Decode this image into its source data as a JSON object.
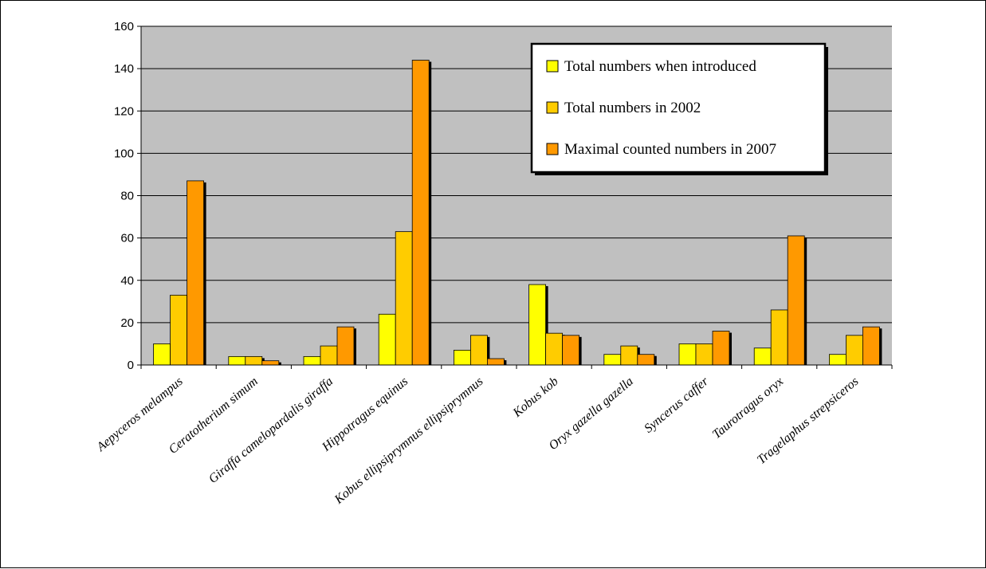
{
  "chart_data": {
    "type": "bar",
    "categories": [
      "Aepyceros melampus",
      "Ceratotherium simum",
      "Giraffa camelopardalis giraffa",
      "Hippotragus equinus",
      "Kobus ellipsiprymnus ellipsiprymnus",
      "Kobus kob",
      "Oryx gazella gazella",
      "Syncerus caffer",
      "Taurotragus oryx",
      "Tragelaphus strepsiceros"
    ],
    "series": [
      {
        "name": "Total numbers when introduced",
        "color": "#FFFF00",
        "values": [
          10,
          4,
          4,
          24,
          7,
          38,
          5,
          10,
          8,
          5
        ]
      },
      {
        "name": "Total numbers in 2002",
        "color": "#FFCC00",
        "values": [
          33,
          4,
          9,
          63,
          14,
          15,
          9,
          10,
          26,
          14
        ]
      },
      {
        "name": "Maximal counted numbers in 2007",
        "color": "#FF9900",
        "values": [
          87,
          2,
          18,
          144,
          3,
          14,
          5,
          16,
          61,
          18
        ]
      }
    ],
    "y_ticks": [
      "0",
      "20",
      "40",
      "60",
      "80",
      "100",
      "120",
      "140",
      "160"
    ],
    "ylim": [
      0,
      160
    ],
    "grid": true,
    "plot_background": "#C0C0C0",
    "legend_position": "top-right"
  }
}
